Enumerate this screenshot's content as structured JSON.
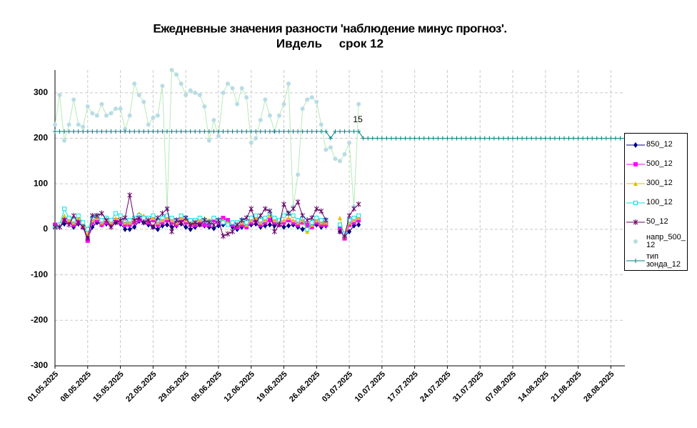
{
  "chart_data": {
    "type": "line",
    "title": "Ежедневные значения разности 'наблюдение минус прогноз'.",
    "subtitle": "Ивдель     срок 12",
    "annotation": "15",
    "ylim": [
      -300,
      350
    ],
    "yticks": [
      -300,
      -200,
      -100,
      0,
      100,
      200,
      300
    ],
    "grid": true,
    "xlim": [
      "01.05.2025",
      "31.08.2025"
    ],
    "xticks": [
      "01.05.2025",
      "08.05.2025",
      "15.05.2025",
      "22.05.2025",
      "29.05.2025",
      "05.06.2025",
      "12.06.2025",
      "19.06.2025",
      "26.06.2025",
      "03.07.2025",
      "10.07.2025",
      "17.07.2025",
      "24.07.2025",
      "31.07.2025",
      "07.08.2025",
      "14.08.2025",
      "21.08.2025",
      "28.08.2025"
    ],
    "legend": "right",
    "x": [
      "01.05.2025",
      "02.05.2025",
      "03.05.2025",
      "04.05.2025",
      "05.05.2025",
      "06.05.2025",
      "07.05.2025",
      "08.05.2025",
      "09.05.2025",
      "10.05.2025",
      "11.05.2025",
      "12.05.2025",
      "13.05.2025",
      "14.05.2025",
      "15.05.2025",
      "16.05.2025",
      "17.05.2025",
      "18.05.2025",
      "19.05.2025",
      "20.05.2025",
      "21.05.2025",
      "22.05.2025",
      "23.05.2025",
      "24.05.2025",
      "25.05.2025",
      "26.05.2025",
      "27.05.2025",
      "28.05.2025",
      "29.05.2025",
      "30.05.2025",
      "31.05.2025",
      "01.06.2025",
      "02.06.2025",
      "03.06.2025",
      "04.06.2025",
      "05.06.2025",
      "06.06.2025",
      "07.06.2025",
      "08.06.2025",
      "09.06.2025",
      "10.06.2025",
      "11.06.2025",
      "12.06.2025",
      "13.06.2025",
      "14.06.2025",
      "15.06.2025",
      "16.06.2025",
      "17.06.2025",
      "18.06.2025",
      "19.06.2025",
      "20.06.2025",
      "21.06.2025",
      "22.06.2025",
      "23.06.2025",
      "24.06.2025",
      "25.06.2025",
      "26.06.2025",
      "27.06.2025",
      "28.06.2025",
      "29.06.2025",
      "30.06.2025",
      "01.07.2025",
      "02.07.2025",
      "03.07.2025",
      "04.07.2025",
      "05.07.2025",
      "06.07.2025",
      "07.07.2025",
      "08.07.2025",
      "09.07.2025",
      "10.07.2025",
      "11.07.2025",
      "12.07.2025",
      "13.07.2025",
      "14.07.2025",
      "15.07.2025",
      "16.07.2025",
      "17.07.2025",
      "18.07.2025",
      "19.07.2025",
      "20.07.2025",
      "21.07.2025",
      "22.07.2025",
      "23.07.2025",
      "24.07.2025",
      "25.07.2025",
      "26.07.2025",
      "27.07.2025",
      "28.07.2025",
      "29.07.2025",
      "30.07.2025",
      "31.07.2025",
      "01.08.2025",
      "02.08.2025",
      "03.08.2025",
      "04.08.2025",
      "05.08.2025",
      "06.08.2025",
      "07.08.2025",
      "08.08.2025",
      "09.08.2025",
      "10.08.2025",
      "11.08.2025",
      "12.08.2025",
      "13.08.2025",
      "14.08.2025",
      "15.08.2025",
      "16.08.2025",
      "17.08.2025",
      "18.08.2025",
      "19.08.2025",
      "20.08.2025",
      "21.08.2025",
      "22.08.2025",
      "23.08.2025",
      "24.08.2025",
      "25.08.2025",
      "26.08.2025",
      "27.08.2025",
      "28.08.2025",
      "29.08.2025",
      "30.08.2025",
      "31.08.2025"
    ],
    "series": [
      {
        "name": "850_12",
        "color": "#000080",
        "marker": "diamond",
        "values": [
          5,
          8,
          12,
          15,
          5,
          12,
          8,
          -20,
          5,
          15,
          10,
          12,
          8,
          15,
          12,
          0,
          0,
          5,
          18,
          15,
          10,
          5,
          0,
          8,
          10,
          5,
          8,
          12,
          5,
          0,
          5,
          10,
          8,
          5,
          2,
          8,
          10,
          12,
          5,
          0,
          5,
          8,
          10,
          12,
          5,
          8,
          10,
          8,
          12,
          5,
          8,
          10,
          5,
          0,
          5,
          8,
          10,
          5,
          8,
          null,
          null,
          -5,
          -15,
          -5,
          8,
          10,
          null,
          null,
          null,
          null,
          null,
          null,
          null,
          null,
          null,
          null,
          null,
          null,
          null,
          null,
          null,
          null,
          null,
          null,
          null,
          null,
          null,
          null,
          null,
          null,
          null,
          null,
          null,
          null,
          null,
          null,
          null,
          null,
          null,
          null,
          null,
          null,
          null,
          null,
          null,
          null,
          null,
          null,
          null,
          null,
          null,
          null,
          null,
          null,
          null,
          null,
          null,
          null,
          null,
          null,
          null,
          null,
          null
        ]
      },
      {
        "name": "500_12",
        "color": "#ff00ff",
        "marker": "square",
        "values": [
          10,
          10,
          20,
          15,
          10,
          15,
          5,
          -25,
          15,
          20,
          10,
          15,
          10,
          20,
          15,
          10,
          10,
          15,
          20,
          25,
          15,
          20,
          10,
          15,
          20,
          15,
          10,
          20,
          15,
          10,
          10,
          15,
          10,
          10,
          20,
          15,
          25,
          20,
          10,
          5,
          10,
          5,
          15,
          20,
          10,
          15,
          20,
          15,
          10,
          15,
          20,
          15,
          10,
          15,
          10,
          5,
          15,
          10,
          10,
          null,
          null,
          5,
          -20,
          10,
          15,
          20,
          null,
          null,
          null,
          null,
          null,
          null,
          null,
          null,
          null,
          null,
          null,
          null,
          null,
          null,
          null,
          null,
          null,
          null,
          null,
          null,
          null,
          null,
          null,
          null,
          null,
          null,
          null,
          null,
          null,
          null,
          null,
          null,
          null,
          null,
          null,
          null,
          null,
          null,
          null,
          null,
          null,
          null,
          null,
          null,
          null,
          null,
          null,
          null,
          null,
          null,
          null,
          null,
          null,
          null,
          null,
          null,
          null
        ]
      },
      {
        "name": "300_12",
        "color": "#e0c000",
        "marker": "triangle",
        "values": [
          5,
          10,
          30,
          20,
          15,
          25,
          10,
          -10,
          20,
          25,
          15,
          20,
          15,
          25,
          20,
          15,
          15,
          20,
          35,
          30,
          20,
          25,
          15,
          20,
          25,
          20,
          15,
          25,
          20,
          15,
          15,
          20,
          25,
          20,
          25,
          20,
          20,
          15,
          15,
          10,
          15,
          10,
          20,
          25,
          15,
          20,
          30,
          20,
          15,
          20,
          25,
          20,
          15,
          20,
          -5,
          10,
          20,
          15,
          15,
          null,
          null,
          25,
          -15,
          15,
          20,
          25,
          null,
          null,
          null,
          null,
          null,
          null,
          null,
          null,
          null,
          null,
          null,
          null,
          null,
          null,
          null,
          null,
          null,
          null,
          null,
          null,
          null,
          null,
          null,
          null,
          null,
          null,
          null,
          null,
          null,
          null,
          null,
          null,
          null,
          null,
          null,
          null,
          null,
          null,
          null,
          null,
          null,
          null,
          null,
          null,
          null,
          null,
          null,
          null,
          null,
          null,
          null,
          null,
          null,
          null,
          null,
          null,
          null
        ]
      },
      {
        "name": "100_12",
        "color": "#00e0e0",
        "marker": "open-square",
        "values": [
          5,
          10,
          45,
          25,
          20,
          30,
          15,
          0,
          25,
          30,
          20,
          25,
          20,
          35,
          30,
          20,
          20,
          25,
          30,
          25,
          25,
          30,
          20,
          25,
          30,
          25,
          20,
          30,
          25,
          20,
          20,
          25,
          20,
          15,
          25,
          20,
          15,
          10,
          15,
          15,
          20,
          15,
          25,
          30,
          20,
          25,
          35,
          25,
          20,
          30,
          35,
          30,
          20,
          25,
          0,
          15,
          25,
          20,
          20,
          null,
          null,
          10,
          -10,
          20,
          25,
          30,
          null,
          null,
          null,
          null,
          null,
          null,
          null,
          null,
          null,
          null,
          null,
          null,
          null,
          null,
          null,
          null,
          null,
          null,
          null,
          null,
          null,
          null,
          null,
          null,
          null,
          null,
          null,
          null,
          null,
          null,
          null,
          null,
          null,
          null,
          null,
          null,
          null,
          null,
          null,
          null,
          null,
          null,
          null,
          null,
          null,
          null,
          null,
          null,
          null,
          null,
          null,
          null,
          null,
          null,
          null,
          null,
          null
        ]
      },
      {
        "name": "50_12",
        "color": "#660066",
        "marker": "star",
        "values": [
          5,
          5,
          20,
          10,
          30,
          15,
          5,
          -20,
          30,
          30,
          35,
          20,
          5,
          15,
          20,
          25,
          75,
          20,
          25,
          15,
          20,
          5,
          25,
          35,
          45,
          -5,
          20,
          15,
          25,
          10,
          15,
          10,
          20,
          15,
          10,
          20,
          -15,
          -10,
          -5,
          10,
          20,
          25,
          45,
          15,
          30,
          45,
          40,
          -5,
          10,
          55,
          35,
          45,
          60,
          30,
          20,
          25,
          45,
          40,
          20,
          null,
          null,
          -5,
          -15,
          30,
          45,
          55,
          null,
          null,
          null,
          null,
          null,
          null,
          null,
          null,
          null,
          null,
          null,
          null,
          null,
          null,
          null,
          null,
          null,
          null,
          null,
          null,
          null,
          null,
          null,
          null,
          null,
          null,
          null,
          null,
          null,
          null,
          null,
          null,
          null,
          null,
          null,
          null,
          null,
          null,
          null,
          null,
          null,
          null,
          null,
          null,
          null,
          null,
          null,
          null,
          null,
          null,
          null,
          null,
          null,
          null,
          null,
          null,
          null
        ]
      },
      {
        "name": "напр_500_12",
        "color": "#b8dce6",
        "line_color": "#b4ecb4",
        "marker": "circle",
        "values": [
          230,
          295,
          195,
          230,
          285,
          230,
          225,
          270,
          255,
          250,
          275,
          250,
          255,
          265,
          265,
          220,
          250,
          320,
          295,
          280,
          230,
          245,
          250,
          315,
          45,
          350,
          340,
          320,
          295,
          305,
          300,
          295,
          270,
          195,
          240,
          205,
          300,
          320,
          310,
          275,
          310,
          290,
          190,
          200,
          240,
          285,
          250,
          215,
          250,
          275,
          320,
          50,
          120,
          265,
          285,
          290,
          280,
          230,
          175,
          180,
          155,
          150,
          165,
          190,
          50,
          275,
          null,
          null,
          null,
          null,
          null,
          null,
          null,
          null,
          null,
          null,
          null,
          null,
          null,
          null,
          null,
          null,
          null,
          null,
          null,
          null,
          null,
          null,
          null,
          null,
          null,
          null,
          null,
          null,
          null,
          null,
          null,
          null,
          null,
          null,
          null,
          null,
          null,
          null,
          null,
          null,
          null,
          null,
          null,
          null,
          null,
          null,
          null,
          null,
          null,
          null,
          null,
          null,
          null,
          null,
          null,
          null,
          null
        ]
      },
      {
        "name": "тип зонда_12",
        "color": "#008080",
        "marker": "plus",
        "values": [
          215,
          215,
          215,
          215,
          215,
          215,
          215,
          215,
          215,
          215,
          215,
          215,
          215,
          215,
          215,
          215,
          215,
          215,
          215,
          215,
          215,
          215,
          215,
          215,
          215,
          215,
          215,
          215,
          215,
          215,
          215,
          215,
          215,
          215,
          215,
          215,
          215,
          215,
          215,
          215,
          215,
          215,
          215,
          215,
          215,
          215,
          215,
          215,
          215,
          215,
          215,
          215,
          215,
          215,
          215,
          215,
          215,
          215,
          215,
          200,
          215,
          215,
          215,
          215,
          215,
          215,
          200,
          200,
          200,
          200,
          200,
          200,
          200,
          200,
          200,
          200,
          200,
          200,
          200,
          200,
          200,
          200,
          200,
          200,
          200,
          200,
          200,
          200,
          200,
          200,
          200,
          200,
          200,
          200,
          200,
          200,
          200,
          200,
          200,
          200,
          200,
          200,
          200,
          200,
          200,
          200,
          200,
          200,
          200,
          200,
          200,
          200,
          200,
          200,
          200,
          200,
          200,
          200,
          200,
          200,
          200,
          200,
          200
        ]
      }
    ]
  }
}
